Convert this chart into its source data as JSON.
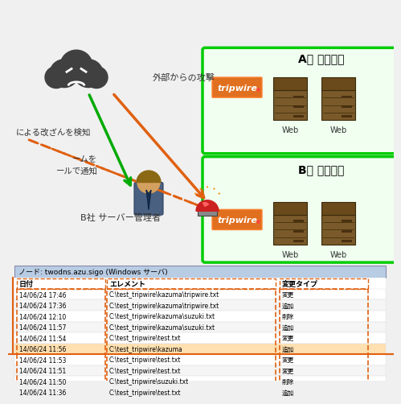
{
  "bg_color": "#f5f5f5",
  "title_node": "ノード: twodns.azu.sigo (Windows サーバ)",
  "table_header": [
    "日付",
    "エレメント",
    "変更タイプ"
  ],
  "table_rows": [
    [
      "14/06/24 17:46",
      "C:\\test_tripwire\\kazuma\\tripwire.txt",
      "変更"
    ],
    [
      "14/06/24 17:36",
      "C:\\test_tripwire\\kazuma\\tripwire.txt",
      "追加"
    ],
    [
      "14/06/24 12:10",
      "C:\\test_tripwire\\kazuma\\suzuki.txt",
      "削除"
    ],
    [
      "14/06/24 11:57",
      "C:\\test_tripwire\\kazuma\\suzuki.txt",
      "追加"
    ],
    [
      "14/06/24 11:54",
      "C:\\test_tripwire\\test.txt",
      "変更"
    ],
    [
      "14/06/24 11:56",
      "C:\\test_tripwire\\kazuma",
      "追加"
    ],
    [
      "14/06/24 11:53",
      "C:\\test_tripwire\\test.txt",
      "変更"
    ],
    [
      "14/06/24 11:51",
      "C:\\test_tripwire\\test.txt",
      "変更"
    ],
    [
      "14/06/24 11:50",
      "C:\\test_tripwire\\suzuki.txt",
      "削除"
    ],
    [
      "14/06/24 11:36",
      "C:\\test_tripwire\\test.txt",
      "追加"
    ]
  ],
  "orange_arrow_color": "#e06010",
  "green_arrow_color": "#00aa00",
  "dashed_orange_color": "#e06010",
  "green_border_color": "#00cc00",
  "table_header_bg": "#b8cce4",
  "table_bg_light": "#ffffff",
  "table_bg_alt": "#f0f0f0",
  "highlight_row_bg": "#ffe0c0",
  "tripwire_bg": "#e07020",
  "tripwire_text": "#ffffff",
  "label_a": "A社 サーバー",
  "label_b": "B社 サーバー",
  "label_web": "Web",
  "label_attack": "外部からの攻撃",
  "label_detect": "による改ざんを検知",
  "label_notify1": "ームを",
  "label_notify2": "ールで通知",
  "label_admin": "B社 サーバー管理者",
  "dashed_border_color": "#e06010"
}
